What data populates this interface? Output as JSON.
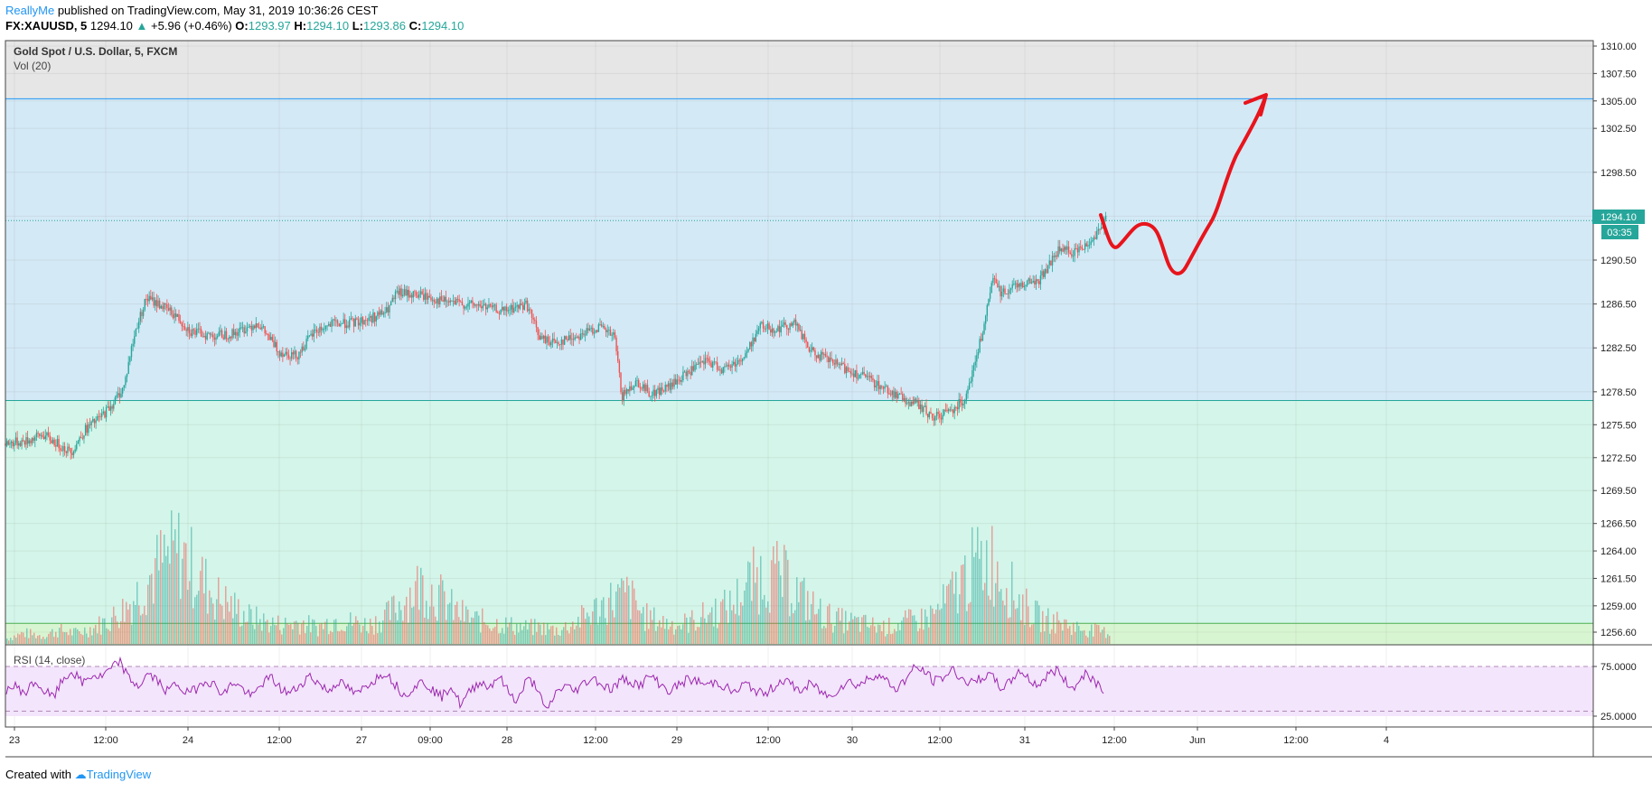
{
  "header": {
    "author": "ReallyMe",
    "published": "published on TradingView.com, May 31, 2019 10:36:26 CEST",
    "symbol": "FX:XAUUSD, 5",
    "last": "1294.10",
    "change": "+5.96 (+0.46%)",
    "o_label": "O:",
    "o": "1293.97",
    "h_label": "H:",
    "h": "1294.10",
    "l_label": "L:",
    "l": "1293.86",
    "c_label": "C:",
    "c": "1294.10"
  },
  "legend": {
    "title": "Gold Spot / U.S. Dollar, 5, FXCM",
    "vol": "Vol (20)",
    "rsi": "RSI (14, close)"
  },
  "price_tag": "1294.10",
  "countdown": "03:35",
  "footer": {
    "created_with": "Created with",
    "brand": "TradingView"
  },
  "colors": {
    "up": "#26a69a",
    "down": "#ef5350",
    "blue_zone": "#d3e9f6",
    "green_zone": "#d4f5e9",
    "gray_zone": "#e6e6e6",
    "rsi_line": "#9c27b0",
    "rsi_band": "#f3e5fb",
    "drawing": "#e8141c",
    "price_tag_bg": "#26a69a"
  },
  "chart_data": [
    {
      "type": "candlestick",
      "title": "Gold Spot / U.S. Dollar, 5, FXCM",
      "x_ticks": [
        "23",
        "12:00",
        "24",
        "12:00",
        "27",
        "09:00",
        "28",
        "12:00",
        "29",
        "12:00",
        "30",
        "12:00",
        "31",
        "12:00",
        "Jun",
        "12:00",
        "4"
      ],
      "y_ticks": [
        1310.0,
        1307.5,
        1305.0,
        1302.5,
        1298.5,
        1294.5,
        1290.5,
        1286.5,
        1282.5,
        1278.5,
        1275.5,
        1272.5,
        1269.5,
        1266.5,
        1264.0,
        1261.5,
        1259.0,
        1256.6
      ],
      "ylim": [
        1254.5,
        1310.0
      ],
      "last_price": 1294.1,
      "price_path": [
        {
          "x": 0,
          "y": 1273.8
        },
        {
          "x": 20,
          "y": 1274.0
        },
        {
          "x": 35,
          "y": 1274.6
        },
        {
          "x": 50,
          "y": 1273.7
        },
        {
          "x": 62,
          "y": 1273.0
        },
        {
          "x": 75,
          "y": 1275.0
        },
        {
          "x": 90,
          "y": 1276.2
        },
        {
          "x": 102,
          "y": 1277.5
        },
        {
          "x": 112,
          "y": 1279.0
        },
        {
          "x": 118,
          "y": 1282.0
        },
        {
          "x": 124,
          "y": 1284.5
        },
        {
          "x": 133,
          "y": 1287.0
        },
        {
          "x": 145,
          "y": 1286.5
        },
        {
          "x": 160,
          "y": 1285.5
        },
        {
          "x": 175,
          "y": 1284.0
        },
        {
          "x": 195,
          "y": 1283.6
        },
        {
          "x": 215,
          "y": 1283.8
        },
        {
          "x": 238,
          "y": 1284.8
        },
        {
          "x": 258,
          "y": 1282.2
        },
        {
          "x": 275,
          "y": 1281.8
        },
        {
          "x": 292,
          "y": 1284.0
        },
        {
          "x": 310,
          "y": 1284.7
        },
        {
          "x": 330,
          "y": 1284.8
        },
        {
          "x": 345,
          "y": 1285.2
        },
        {
          "x": 360,
          "y": 1285.8
        },
        {
          "x": 370,
          "y": 1287.5
        },
        {
          "x": 392,
          "y": 1287.3
        },
        {
          "x": 410,
          "y": 1286.8
        },
        {
          "x": 430,
          "y": 1286.5
        },
        {
          "x": 450,
          "y": 1286.3
        },
        {
          "x": 470,
          "y": 1285.8
        },
        {
          "x": 492,
          "y": 1286.5
        },
        {
          "x": 505,
          "y": 1283.3
        },
        {
          "x": 520,
          "y": 1283.0
        },
        {
          "x": 540,
          "y": 1283.6
        },
        {
          "x": 560,
          "y": 1284.4
        },
        {
          "x": 575,
          "y": 1283.5
        },
        {
          "x": 582,
          "y": 1278.0
        },
        {
          "x": 595,
          "y": 1279.5
        },
        {
          "x": 610,
          "y": 1278.3
        },
        {
          "x": 628,
          "y": 1279.0
        },
        {
          "x": 645,
          "y": 1280.3
        },
        {
          "x": 662,
          "y": 1281.3
        },
        {
          "x": 678,
          "y": 1280.5
        },
        {
          "x": 698,
          "y": 1281.7
        },
        {
          "x": 712,
          "y": 1284.5
        },
        {
          "x": 728,
          "y": 1284.2
        },
        {
          "x": 745,
          "y": 1284.8
        },
        {
          "x": 760,
          "y": 1282.2
        },
        {
          "x": 778,
          "y": 1281.3
        },
        {
          "x": 795,
          "y": 1280.5
        },
        {
          "x": 812,
          "y": 1279.8
        },
        {
          "x": 830,
          "y": 1278.8
        },
        {
          "x": 848,
          "y": 1277.8
        },
        {
          "x": 862,
          "y": 1277.3
        },
        {
          "x": 876,
          "y": 1276.1
        },
        {
          "x": 892,
          "y": 1276.8
        },
        {
          "x": 905,
          "y": 1277.8
        },
        {
          "x": 915,
          "y": 1281.0
        },
        {
          "x": 925,
          "y": 1285.0
        },
        {
          "x": 932,
          "y": 1288.8
        },
        {
          "x": 940,
          "y": 1287.5
        },
        {
          "x": 955,
          "y": 1288.3
        },
        {
          "x": 975,
          "y": 1288.6
        },
        {
          "x": 995,
          "y": 1291.5
        },
        {
          "x": 1010,
          "y": 1291.2
        },
        {
          "x": 1025,
          "y": 1292.3
        },
        {
          "x": 1040,
          "y": 1294.3
        }
      ]
    },
    {
      "type": "bar",
      "title": "Vol (20)",
      "values": [
        2,
        4,
        3,
        5,
        4,
        6,
        9,
        14,
        22,
        30,
        34,
        26,
        18,
        14,
        10,
        8,
        7,
        8,
        6,
        9,
        8,
        7,
        10,
        16,
        22,
        18,
        12,
        9,
        8,
        7,
        6,
        6,
        5,
        8,
        12,
        16,
        18,
        10,
        8,
        7,
        9,
        12,
        14,
        22,
        26,
        24,
        18,
        12,
        9,
        8,
        7,
        6,
        8,
        9,
        12,
        20,
        28,
        32,
        22,
        14,
        9,
        8,
        6,
        5,
        4
      ]
    },
    {
      "type": "line",
      "title": "RSI (14, close)",
      "y_ticks": [
        75.0,
        25.0
      ],
      "ylim": [
        20,
        85
      ],
      "bands": [
        70,
        30
      ],
      "values": [
        52,
        55,
        48,
        60,
        50,
        44,
        62,
        70,
        58,
        66,
        64,
        72,
        80,
        62,
        55,
        68,
        60,
        50,
        58,
        48,
        52,
        62,
        56,
        47,
        60,
        52,
        44,
        58,
        64,
        52,
        48,
        56,
        66,
        58,
        50,
        60,
        54,
        46,
        56,
        62,
        70,
        58,
        46,
        54,
        60,
        52,
        44,
        56,
        36,
        50,
        60,
        54,
        66,
        50,
        40,
        62,
        56,
        28,
        48,
        56,
        50,
        58,
        64,
        56,
        52,
        62,
        60,
        56,
        66,
        58,
        50,
        56,
        62,
        60,
        56,
        60,
        54,
        48,
        58,
        52,
        46,
        54,
        62,
        56,
        50,
        58,
        50,
        44,
        54,
        60,
        56,
        62,
        68,
        60,
        52,
        62,
        74,
        70,
        60,
        64,
        72,
        62,
        58,
        64,
        66,
        54,
        58,
        72,
        62,
        56,
        66,
        72,
        58,
        54,
        70,
        60,
        52
      ]
    }
  ]
}
